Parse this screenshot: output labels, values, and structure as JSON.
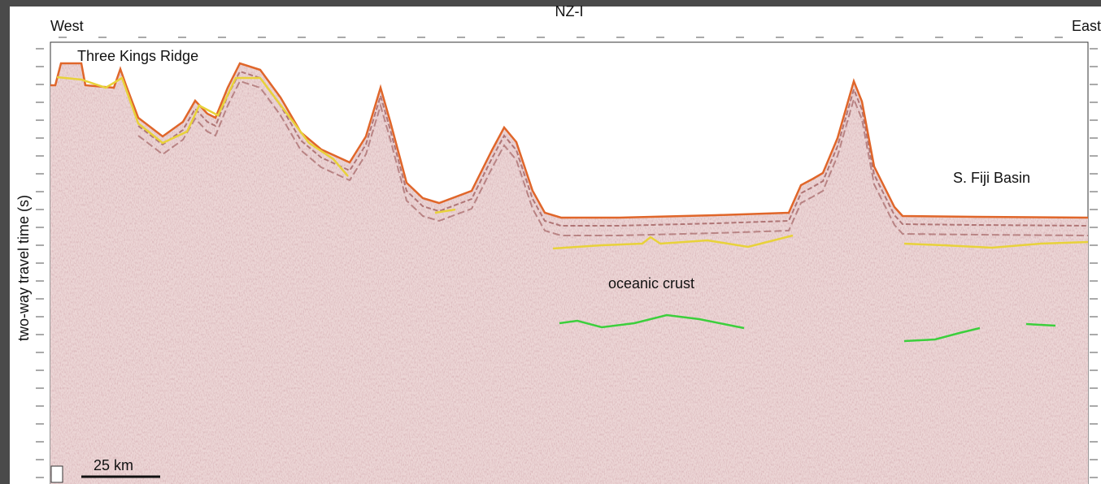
{
  "header": {
    "title": "NZ-I",
    "west": "West",
    "east": "East"
  },
  "y_axis_label": "two-way travel time (s)",
  "annotations": {
    "ridge": "Three Kings Ridge",
    "basin": "S. Fiji Basin",
    "crust": "oceanic crust"
  },
  "scale_bar": "25 km"
}
